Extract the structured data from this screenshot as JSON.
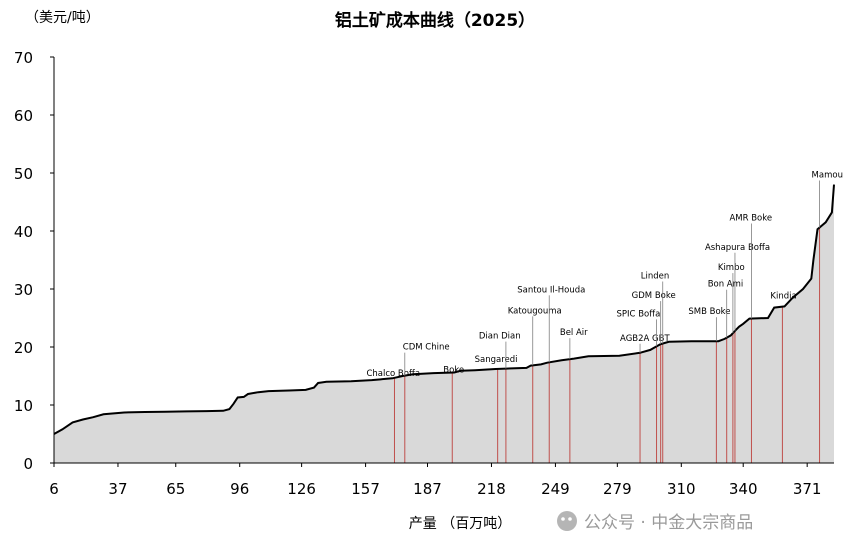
{
  "chart_data": {
    "type": "area",
    "title": "铝土矿成本曲线（2025）",
    "ylabel": "（美元/吨）",
    "xlabel": "产量 （百万吨）",
    "xlim": [
      6,
      384
    ],
    "ylim": [
      0,
      70
    ],
    "x_ticks": [
      6,
      37,
      65,
      96,
      126,
      157,
      187,
      218,
      249,
      279,
      310,
      340,
      371
    ],
    "y_ticks": [
      0,
      10,
      20,
      30,
      40,
      50,
      60,
      70
    ],
    "fill_color": "#d9d9d9",
    "line_color": "#000000",
    "marker_color": "#c0504d",
    "curve": [
      [
        6,
        5
      ],
      [
        10,
        5.8
      ],
      [
        15,
        7
      ],
      [
        20,
        7.5
      ],
      [
        25,
        7.9
      ],
      [
        30,
        8.4
      ],
      [
        40,
        8.7
      ],
      [
        50,
        8.8
      ],
      [
        60,
        8.85
      ],
      [
        70,
        8.9
      ],
      [
        80,
        8.95
      ],
      [
        88,
        9.0
      ],
      [
        91,
        9.3
      ],
      [
        93,
        10.2
      ],
      [
        95,
        11.3
      ],
      [
        98,
        11.4
      ],
      [
        100,
        11.9
      ],
      [
        105,
        12.2
      ],
      [
        110,
        12.4
      ],
      [
        120,
        12.5
      ],
      [
        128,
        12.6
      ],
      [
        132,
        13.0
      ],
      [
        134,
        13.8
      ],
      [
        138,
        14.0
      ],
      [
        150,
        14.1
      ],
      [
        160,
        14.3
      ],
      [
        170,
        14.6
      ],
      [
        175,
        15.0
      ],
      [
        180,
        15.3
      ],
      [
        190,
        15.5
      ],
      [
        200,
        15.6
      ],
      [
        203,
        15.9
      ],
      [
        210,
        16.0
      ],
      [
        220,
        16.2
      ],
      [
        235,
        16.4
      ],
      [
        237,
        16.8
      ],
      [
        242,
        17.0
      ],
      [
        245,
        17.3
      ],
      [
        252,
        17.7
      ],
      [
        258,
        18.0
      ],
      [
        265,
        18.4
      ],
      [
        280,
        18.5
      ],
      [
        290,
        19.0
      ],
      [
        295,
        19.5
      ],
      [
        298,
        20.1
      ],
      [
        300,
        20.5
      ],
      [
        304,
        20.9
      ],
      [
        315,
        21.0
      ],
      [
        328,
        21.0
      ],
      [
        331,
        21.4
      ],
      [
        334,
        22.0
      ],
      [
        336,
        22.8
      ],
      [
        338,
        23.5
      ],
      [
        340,
        24.0
      ],
      [
        343,
        24.9
      ],
      [
        352,
        25.0
      ],
      [
        355,
        26.8
      ],
      [
        360,
        27.0
      ],
      [
        364,
        28.5
      ],
      [
        369,
        30.0
      ],
      [
        373,
        31.8
      ],
      [
        374,
        35.0
      ],
      [
        376,
        40.3
      ],
      [
        380,
        41.5
      ],
      [
        383,
        43.2
      ],
      [
        384,
        48.0
      ]
    ],
    "annotations": [
      {
        "label": "Chalco Boffa",
        "x": 171
      },
      {
        "label": "CDM Chine",
        "x": 176
      },
      {
        "label": "Boke",
        "x": 199
      },
      {
        "label": "Sangaredi",
        "x": 221
      },
      {
        "label": "Dian Dian",
        "x": 225
      },
      {
        "label": "Katougouma",
        "x": 238
      },
      {
        "label": "Santou Il-Houda",
        "x": 246
      },
      {
        "label": "Bel Air",
        "x": 256
      },
      {
        "label": "AGB2A GBT",
        "x": 290
      },
      {
        "label": "SPIC Boffa",
        "x": 298
      },
      {
        "label": "GDM Boke",
        "x": 300
      },
      {
        "label": "Linden",
        "x": 301
      },
      {
        "label": "SMB Boke",
        "x": 327
      },
      {
        "label": "Bon Ami",
        "x": 332
      },
      {
        "label": "Kimbo",
        "x": 335
      },
      {
        "label": "Ashapura Boffa",
        "x": 336
      },
      {
        "label": "AMR Boke",
        "x": 344
      },
      {
        "label": "Kindia",
        "x": 359
      },
      {
        "label": "Mamou",
        "x": 377
      }
    ]
  },
  "watermark": "公众号 · 中金大宗商品"
}
